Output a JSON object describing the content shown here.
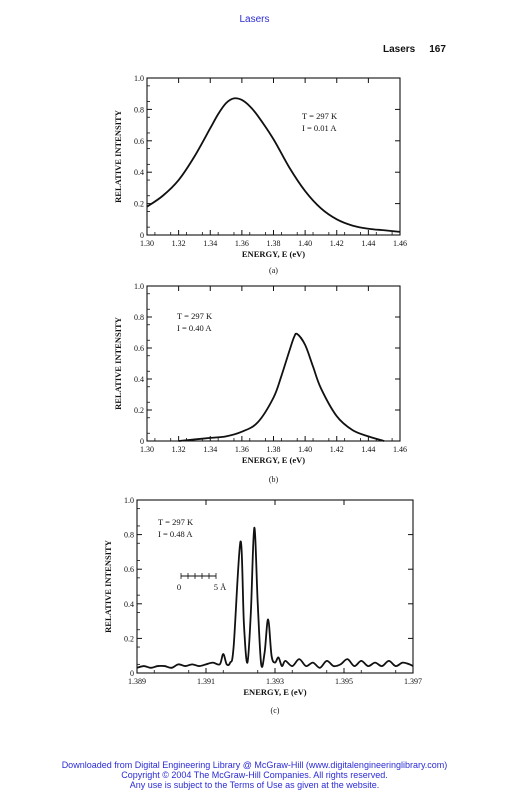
{
  "header": {
    "link_text": "Lasers",
    "running_title": "Lasers",
    "page_number": "167"
  },
  "footer": {
    "line1": "Downloaded from Digital Engineering Library @ McGraw-Hill (www.digitalengineeringlibrary.com)",
    "line2": "Copyright © 2004 The McGraw-Hill Companies. All rights reserved.",
    "line3": "Any use is subject to the Terms of Use as given at the website."
  },
  "chart_data": [
    {
      "type": "line",
      "panel_label": "(a)",
      "xlabel": "ENERGY, E (eV)",
      "ylabel": "RELATIVE INTENSITY",
      "annotations": [
        "T = 297 K",
        "I = 0.01 A"
      ],
      "xlim": [
        1.3,
        1.46
      ],
      "ylim": [
        0,
        1.0
      ],
      "x_ticks": [
        "1.30",
        "1.32",
        "1.34",
        "1.36",
        "1.38",
        "1.40",
        "1.42",
        "1.44",
        "1.46"
      ],
      "y_ticks": [
        "0",
        "0.2",
        "0.4",
        "0.6",
        "0.8",
        "1.0"
      ],
      "series": [
        {
          "x": [
            1.3,
            1.31,
            1.32,
            1.33,
            1.34,
            1.345,
            1.35,
            1.355,
            1.36,
            1.365,
            1.37,
            1.38,
            1.39,
            1.4,
            1.41,
            1.42,
            1.43,
            1.44,
            1.45,
            1.46
          ],
          "y": [
            0.18,
            0.25,
            0.35,
            0.5,
            0.68,
            0.77,
            0.84,
            0.87,
            0.86,
            0.82,
            0.76,
            0.61,
            0.43,
            0.28,
            0.17,
            0.1,
            0.06,
            0.04,
            0.03,
            0.02
          ]
        }
      ]
    },
    {
      "type": "line",
      "panel_label": "(b)",
      "xlabel": "ENERGY, E (eV)",
      "ylabel": "RELATIVE INTENSITY",
      "annotations": [
        "T = 297 K",
        "I = 0.40 A"
      ],
      "xlim": [
        1.3,
        1.46
      ],
      "ylim": [
        0,
        1.0
      ],
      "x_ticks": [
        "1.30",
        "1.32",
        "1.34",
        "1.36",
        "1.38",
        "1.40",
        "1.42",
        "1.44",
        "1.46"
      ],
      "y_ticks": [
        "0",
        "0.2",
        "0.4",
        "0.6",
        "0.8",
        "1.0"
      ],
      "series": [
        {
          "x": [
            1.32,
            1.33,
            1.34,
            1.35,
            1.36,
            1.37,
            1.38,
            1.385,
            1.39,
            1.393,
            1.395,
            1.4,
            1.405,
            1.41,
            1.42,
            1.43,
            1.44,
            1.45
          ],
          "y": [
            0.0,
            0.01,
            0.02,
            0.03,
            0.06,
            0.12,
            0.28,
            0.42,
            0.58,
            0.67,
            0.69,
            0.62,
            0.48,
            0.34,
            0.16,
            0.07,
            0.03,
            0.0
          ]
        }
      ]
    },
    {
      "type": "line",
      "panel_label": "(c)",
      "xlabel": "ENERGY, E (eV)",
      "ylabel": "RELATIVE INTENSITY",
      "annotations": [
        "T = 297 K",
        "I = 0.48 A"
      ],
      "scale_bar": {
        "left": "0",
        "right": "5 Å"
      },
      "xlim": [
        1.389,
        1.397
      ],
      "ylim": [
        0,
        1.0
      ],
      "x_ticks": [
        "1.389",
        "1.391",
        "1.393",
        "1.395",
        "1.397"
      ],
      "y_ticks": [
        "0",
        "0.2",
        "0.4",
        "0.6",
        "0.8",
        "1.0"
      ],
      "series": [
        {
          "x": [
            1.389,
            1.3892,
            1.3894,
            1.3896,
            1.3898,
            1.39,
            1.3902,
            1.3904,
            1.3906,
            1.3908,
            1.391,
            1.3912,
            1.3914,
            1.3915,
            1.3916,
            1.3917,
            1.3918,
            1.392,
            1.3921,
            1.3922,
            1.3923,
            1.3924,
            1.3925,
            1.3926,
            1.3927,
            1.3928,
            1.3929,
            1.393,
            1.3931,
            1.3932,
            1.3933,
            1.3935,
            1.3937,
            1.3939,
            1.3941,
            1.3943,
            1.3945,
            1.3947,
            1.3949,
            1.3951,
            1.3953,
            1.3955,
            1.3957,
            1.3959,
            1.3961,
            1.3963,
            1.3965,
            1.3967,
            1.3969,
            1.397
          ],
          "y": [
            0.03,
            0.04,
            0.03,
            0.04,
            0.04,
            0.03,
            0.05,
            0.04,
            0.05,
            0.04,
            0.05,
            0.06,
            0.05,
            0.11,
            0.05,
            0.06,
            0.15,
            0.76,
            0.28,
            0.06,
            0.35,
            0.84,
            0.4,
            0.05,
            0.12,
            0.31,
            0.1,
            0.06,
            0.09,
            0.04,
            0.07,
            0.04,
            0.08,
            0.04,
            0.06,
            0.03,
            0.07,
            0.04,
            0.05,
            0.08,
            0.04,
            0.07,
            0.04,
            0.06,
            0.04,
            0.07,
            0.04,
            0.06,
            0.05,
            0.04
          ]
        }
      ]
    }
  ]
}
